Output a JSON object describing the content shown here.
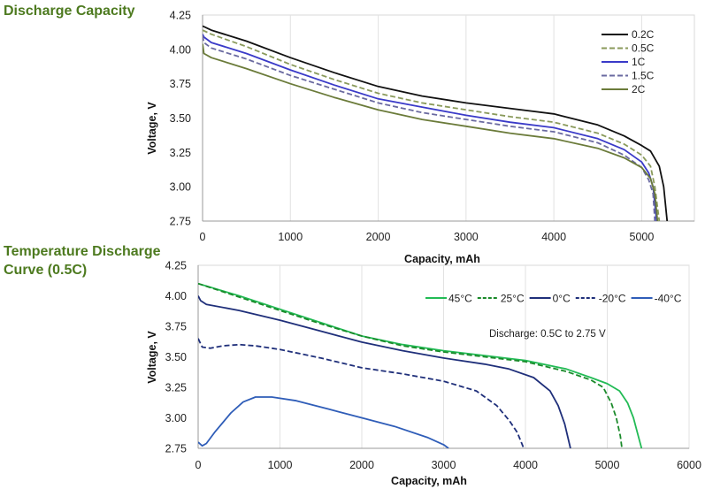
{
  "titles": {
    "top": "Discharge Capacity",
    "bottom": "Temperature Discharge Curve (0.5C)"
  },
  "chart_data": [
    {
      "type": "line",
      "xlabel": "Capacity, mAh",
      "ylabel": "Voltage, V",
      "xlim": [
        0,
        6000
      ],
      "ylim": [
        2.75,
        4.25
      ],
      "x_ticks": [
        "0",
        "1000",
        "2000",
        "3000",
        "4000",
        "5000"
      ],
      "y_ticks": [
        "2.75",
        "3.00",
        "3.25",
        "3.50",
        "3.75",
        "4.00",
        "4.25"
      ],
      "grid": "vertical",
      "legend_position": "top-right",
      "series": [
        {
          "name": "0.2C",
          "color": "#111111",
          "dash": "solid",
          "points": [
            [
              0,
              4.17
            ],
            [
              100,
              4.14
            ],
            [
              500,
              4.06
            ],
            [
              1000,
              3.94
            ],
            [
              1500,
              3.83
            ],
            [
              2000,
              3.73
            ],
            [
              2500,
              3.66
            ],
            [
              3000,
              3.61
            ],
            [
              3500,
              3.57
            ],
            [
              4000,
              3.53
            ],
            [
              4500,
              3.45
            ],
            [
              4800,
              3.37
            ],
            [
              5000,
              3.3
            ],
            [
              5100,
              3.26
            ],
            [
              5200,
              3.15
            ],
            [
              5250,
              3.0
            ],
            [
              5290,
              2.75
            ]
          ]
        },
        {
          "name": "0.5C",
          "color": "#8a9a5b",
          "dash": "dash",
          "points": [
            [
              0,
              4.14
            ],
            [
              100,
              4.11
            ],
            [
              500,
              4.02
            ],
            [
              1000,
              3.89
            ],
            [
              1500,
              3.78
            ],
            [
              2000,
              3.68
            ],
            [
              2500,
              3.61
            ],
            [
              3000,
              3.56
            ],
            [
              3500,
              3.51
            ],
            [
              4000,
              3.47
            ],
            [
              4500,
              3.39
            ],
            [
              4800,
              3.31
            ],
            [
              5000,
              3.23
            ],
            [
              5100,
              3.15
            ],
            [
              5150,
              3.0
            ],
            [
              5200,
              2.75
            ]
          ]
        },
        {
          "name": "1C",
          "color": "#3a3ac8",
          "dash": "solid",
          "points": [
            [
              0,
              4.11
            ],
            [
              15,
              4.09
            ],
            [
              100,
              4.05
            ],
            [
              500,
              3.97
            ],
            [
              1000,
              3.85
            ],
            [
              1500,
              3.74
            ],
            [
              2000,
              3.64
            ],
            [
              2500,
              3.58
            ],
            [
              3000,
              3.52
            ],
            [
              3500,
              3.47
            ],
            [
              4000,
              3.43
            ],
            [
              4500,
              3.35
            ],
            [
              4800,
              3.27
            ],
            [
              5000,
              3.18
            ],
            [
              5080,
              3.1
            ],
            [
              5130,
              3.0
            ],
            [
              5170,
              2.75
            ]
          ]
        },
        {
          "name": "1.5C",
          "color": "#6a6aa0",
          "dash": "dash",
          "points": [
            [
              0,
              4.1
            ],
            [
              15,
              4.05
            ],
            [
              100,
              4.01
            ],
            [
              500,
              3.93
            ],
            [
              1000,
              3.81
            ],
            [
              1500,
              3.71
            ],
            [
              2000,
              3.61
            ],
            [
              2500,
              3.54
            ],
            [
              3000,
              3.49
            ],
            [
              3500,
              3.44
            ],
            [
              4000,
              3.4
            ],
            [
              4500,
              3.32
            ],
            [
              4800,
              3.23
            ],
            [
              5000,
              3.14
            ],
            [
              5080,
              3.05
            ],
            [
              5130,
              2.95
            ],
            [
              5150,
              2.75
            ]
          ]
        },
        {
          "name": "2C",
          "color": "#6b7b3a",
          "dash": "solid",
          "points": [
            [
              0,
              4.04
            ],
            [
              15,
              3.97
            ],
            [
              100,
              3.94
            ],
            [
              500,
              3.86
            ],
            [
              1000,
              3.75
            ],
            [
              1500,
              3.65
            ],
            [
              2000,
              3.56
            ],
            [
              2500,
              3.49
            ],
            [
              3000,
              3.44
            ],
            [
              3500,
              3.39
            ],
            [
              4000,
              3.35
            ],
            [
              4500,
              3.28
            ],
            [
              4800,
              3.21
            ],
            [
              5000,
              3.14
            ],
            [
              5100,
              3.06
            ],
            [
              5150,
              2.95
            ],
            [
              5180,
              2.75
            ]
          ]
        }
      ]
    },
    {
      "type": "line",
      "xlabel": "Capacity, mAh",
      "ylabel": "Voltage, V",
      "xlim": [
        0,
        6000
      ],
      "ylim": [
        2.75,
        4.25
      ],
      "x_ticks": [
        "0",
        "1000",
        "2000",
        "3000",
        "4000",
        "5000",
        "6000"
      ],
      "y_ticks": [
        "2.75",
        "3.00",
        "3.25",
        "3.50",
        "3.75",
        "4.00",
        "4.25"
      ],
      "grid": "vertical",
      "legend_position": "top-right",
      "annotation": "Discharge: 0.5C to 2.75 V",
      "series": [
        {
          "name": "45°C",
          "color": "#22bb55",
          "dash": "solid",
          "points": [
            [
              0,
              4.1
            ],
            [
              500,
              4.0
            ],
            [
              1000,
              3.89
            ],
            [
              1500,
              3.78
            ],
            [
              2000,
              3.67
            ],
            [
              2500,
              3.6
            ],
            [
              3000,
              3.55
            ],
            [
              3500,
              3.51
            ],
            [
              4000,
              3.47
            ],
            [
              4500,
              3.4
            ],
            [
              4800,
              3.33
            ],
            [
              5000,
              3.28
            ],
            [
              5150,
              3.22
            ],
            [
              5250,
              3.12
            ],
            [
              5320,
              3.0
            ],
            [
              5380,
              2.85
            ],
            [
              5420,
              2.75
            ]
          ]
        },
        {
          "name": "25°C",
          "color": "#1a8a2a",
          "dash": "dash",
          "points": [
            [
              0,
              4.1
            ],
            [
              500,
              3.99
            ],
            [
              1000,
              3.88
            ],
            [
              1500,
              3.77
            ],
            [
              2000,
              3.67
            ],
            [
              2500,
              3.59
            ],
            [
              3000,
              3.54
            ],
            [
              3500,
              3.5
            ],
            [
              4000,
              3.46
            ],
            [
              4500,
              3.38
            ],
            [
              4800,
              3.31
            ],
            [
              4950,
              3.25
            ],
            [
              5050,
              3.12
            ],
            [
              5110,
              3.0
            ],
            [
              5160,
              2.85
            ],
            [
              5180,
              2.75
            ]
          ]
        },
        {
          "name": "0°C",
          "color": "#1f2f7a",
          "dash": "solid",
          "points": [
            [
              0,
              4.0
            ],
            [
              30,
              3.96
            ],
            [
              100,
              3.93
            ],
            [
              500,
              3.88
            ],
            [
              1000,
              3.8
            ],
            [
              1500,
              3.71
            ],
            [
              2000,
              3.62
            ],
            [
              2500,
              3.55
            ],
            [
              3000,
              3.49
            ],
            [
              3500,
              3.44
            ],
            [
              3800,
              3.4
            ],
            [
              4100,
              3.33
            ],
            [
              4300,
              3.22
            ],
            [
              4400,
              3.1
            ],
            [
              4480,
              2.95
            ],
            [
              4550,
              2.75
            ]
          ]
        },
        {
          "name": "-20°C",
          "color": "#1f2f7a",
          "dash": "dash",
          "points": [
            [
              0,
              3.65
            ],
            [
              50,
              3.58
            ],
            [
              150,
              3.57
            ],
            [
              300,
              3.59
            ],
            [
              500,
              3.6
            ],
            [
              700,
              3.59
            ],
            [
              1000,
              3.56
            ],
            [
              1500,
              3.49
            ],
            [
              2000,
              3.41
            ],
            [
              2500,
              3.36
            ],
            [
              3000,
              3.3
            ],
            [
              3400,
              3.22
            ],
            [
              3650,
              3.1
            ],
            [
              3800,
              2.98
            ],
            [
              3900,
              2.88
            ],
            [
              3980,
              2.75
            ]
          ]
        },
        {
          "name": "-40°C",
          "color": "#2f5db8",
          "dash": "solid",
          "points": [
            [
              0,
              2.8
            ],
            [
              50,
              2.77
            ],
            [
              100,
              2.79
            ],
            [
              200,
              2.88
            ],
            [
              400,
              3.04
            ],
            [
              550,
              3.13
            ],
            [
              700,
              3.17
            ],
            [
              900,
              3.17
            ],
            [
              1200,
              3.14
            ],
            [
              1600,
              3.07
            ],
            [
              2000,
              3.0
            ],
            [
              2400,
              2.93
            ],
            [
              2800,
              2.84
            ],
            [
              3000,
              2.78
            ],
            [
              3060,
              2.75
            ]
          ]
        }
      ]
    }
  ]
}
